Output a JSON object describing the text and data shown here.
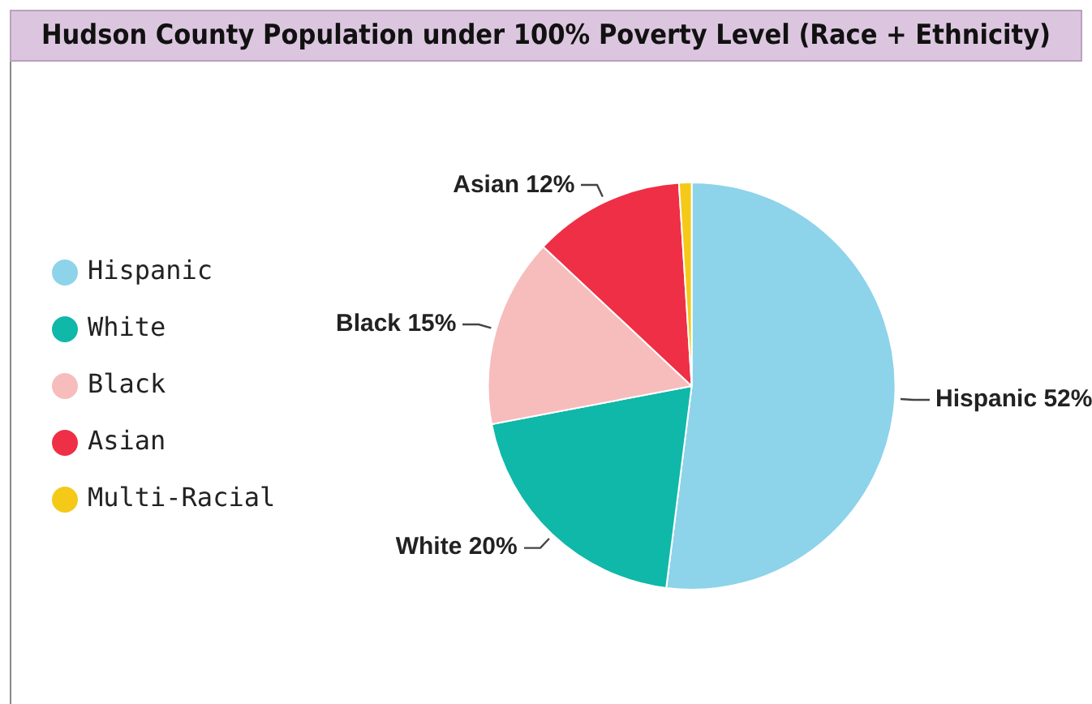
{
  "chart_data": {
    "type": "pie",
    "title": "Hudson County Population under 100% Poverty Level (Race + Ethnicity)",
    "categories": [
      "Hispanic",
      "White",
      "Black",
      "Asian",
      "Multi-Racial"
    ],
    "values": [
      52,
      20,
      15,
      12,
      1
    ],
    "colors": [
      "#8dd3ea",
      "#0fb8a8",
      "#f7bcbc",
      "#ee2f45",
      "#f4c918"
    ],
    "value_labels": [
      "52%",
      "20%",
      "15%",
      "12%",
      null
    ],
    "legend": "left"
  }
}
